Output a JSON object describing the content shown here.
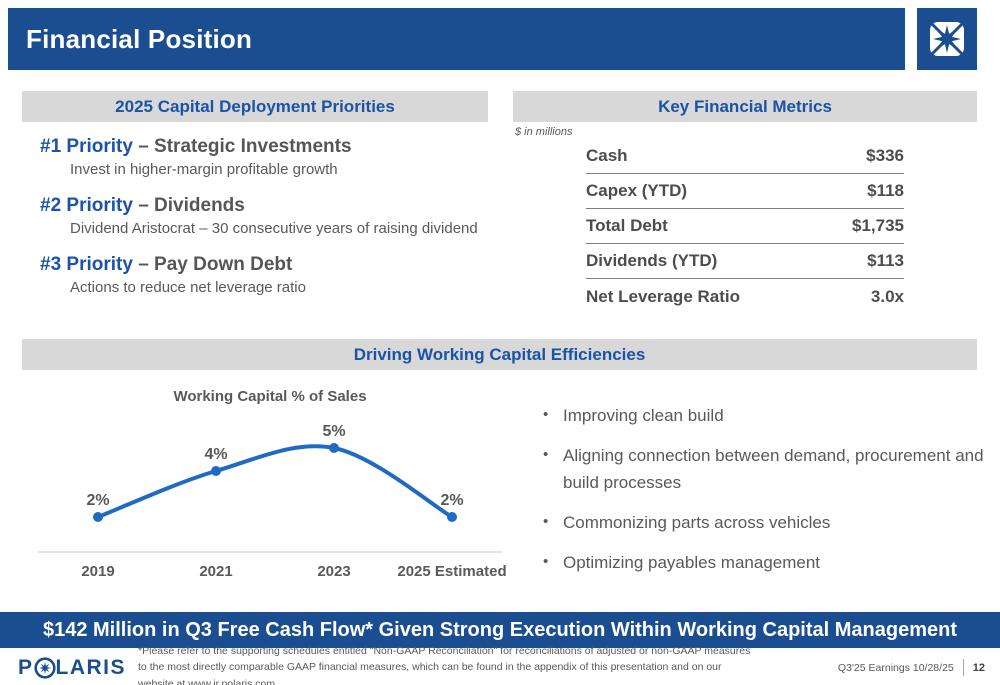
{
  "header": {
    "title": "Financial Position"
  },
  "icons": {
    "header_logo": "polaris-star-icon",
    "wordmark_o": "polaris-star-icon"
  },
  "left_panel": {
    "title": "2025 Capital Deployment Priorities",
    "priorities": [
      {
        "number": "#1 Priority",
        "name": " – Strategic Investments",
        "detail": "Invest in higher-margin profitable growth"
      },
      {
        "number": "#2 Priority",
        "name": " – Dividends",
        "detail": "Dividend Aristocrat – 30 consecutive years of raising dividend"
      },
      {
        "number": "#3 Priority",
        "name": " – Pay Down Debt",
        "detail": "Actions to reduce net leverage ratio"
      }
    ]
  },
  "metrics_panel": {
    "title": "Key Financial Metrics",
    "units_note": "$ in millions",
    "rows": [
      {
        "label": "Cash",
        "value": "$336"
      },
      {
        "label": "Capex (YTD)",
        "value": "$118"
      },
      {
        "label": "Total Debt",
        "value": "$1,735"
      },
      {
        "label": "Dividends (YTD)",
        "value": "$113"
      },
      {
        "label": "Net Leverage Ratio",
        "value": "3.0x"
      }
    ]
  },
  "efficiency_panel": {
    "title": "Driving Working Capital Efficiencies",
    "bullets": [
      "Improving clean build",
      "Aligning connection between demand, procurement and build processes",
      "Commonizing parts across vehicles",
      "Optimizing payables management"
    ]
  },
  "chart_data": {
    "type": "line",
    "title": "Working Capital % of Sales",
    "categories": [
      "2019",
      "2021",
      "2023",
      "2025 Estimated"
    ],
    "values": [
      2,
      4,
      5,
      2
    ],
    "data_labels": [
      "2%",
      "4%",
      "5%",
      "2%"
    ],
    "line_color": "#1f6bc4",
    "axis_color": "#d9d9d9",
    "label_color": "#595959",
    "ylim": [
      0,
      6
    ],
    "grid": false,
    "legend": false,
    "smooth": true
  },
  "banner": {
    "text": "$142 Million in Q3 Free Cash Flow* Given Strong Execution Within Working Capital Management"
  },
  "footer": {
    "logo_text_p": "P",
    "logo_text_rest": "LARIS",
    "footnote": "*Please refer to the supporting schedules entitled \"Non-GAAP Reconciliation\" for reconciliations of adjusted or non-GAAP measures to the most directly comparable GAAP financial measures, which can be found in the appendix of this presentation and on our website at www.ir.polaris.com.",
    "earnings_label": "Q3'25 Earnings 10/28/25",
    "page_number": "12"
  },
  "colors": {
    "brand_blue": "#1b4e91",
    "title_blue": "#1a53a8",
    "bar_gray": "#d8d8d8",
    "text_gray": "#595959",
    "dark_text": "#54565a",
    "chart_line": "#1f6bc4"
  }
}
